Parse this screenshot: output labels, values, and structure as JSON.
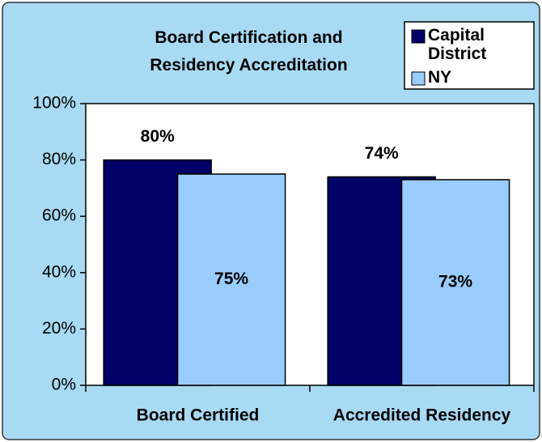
{
  "chart_data": {
    "type": "bar",
    "title": "Board Certification and Residency Accreditation",
    "categories": [
      "Board Certified",
      "Accredited Residency"
    ],
    "series": [
      {
        "name": "Capital District",
        "color": "#000066",
        "values": [
          80,
          74
        ],
        "value_labels": [
          "80%",
          "74%"
        ]
      },
      {
        "name": "NY",
        "color": "#99ccff",
        "values": [
          75,
          73
        ],
        "value_labels": [
          "75%",
          "73%"
        ]
      }
    ],
    "ylim": [
      0,
      100
    ],
    "yticks": [
      {
        "value": 0,
        "label": "0%"
      },
      {
        "value": 20,
        "label": "20%"
      },
      {
        "value": 40,
        "label": "40%"
      },
      {
        "value": 60,
        "label": "60%"
      },
      {
        "value": 80,
        "label": "80%"
      },
      {
        "value": 100,
        "label": "100%"
      }
    ],
    "legend": "top-right"
  }
}
